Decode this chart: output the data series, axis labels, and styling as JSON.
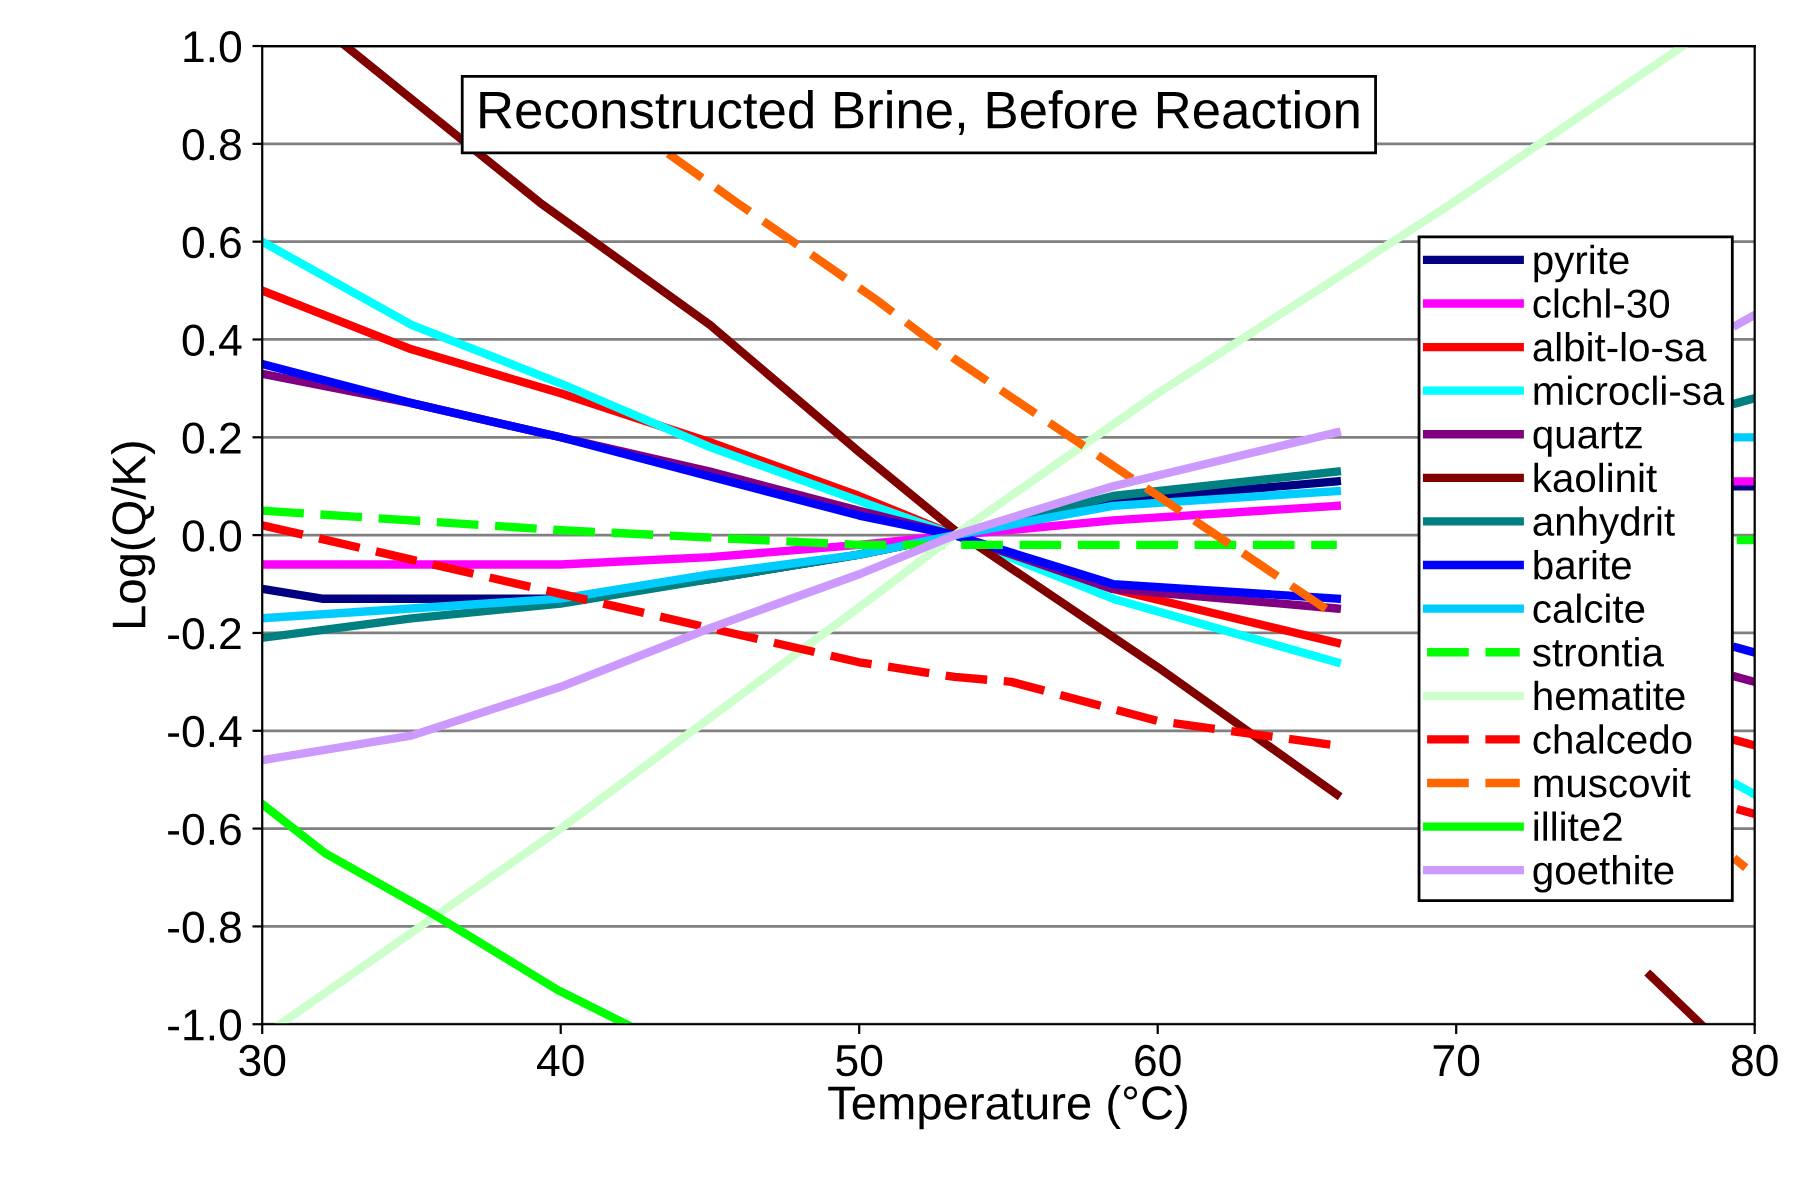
{
  "chart_data": {
    "type": "line",
    "title": "Reconstructed Brine, Before Reaction",
    "xlabel": "Temperature (°C)",
    "ylabel": "Log(Q/K)",
    "xlim": [
      30,
      80
    ],
    "xticks": [
      30,
      40,
      50,
      60,
      70,
      80
    ],
    "ylim": [
      -1,
      1
    ],
    "yticks": [
      {
        "value": -1,
        "label": "-1.0"
      },
      {
        "value": -0.8,
        "label": "-0.8"
      },
      {
        "value": -0.6,
        "label": "-0.6"
      },
      {
        "value": -0.4,
        "label": "-0.4"
      },
      {
        "value": -0.2,
        "label": "-0.2"
      },
      {
        "value": 0,
        "label": "0.0"
      },
      {
        "value": 0.2,
        "label": "0.2"
      },
      {
        "value": 0.4,
        "label": "0.4"
      },
      {
        "value": 0.6,
        "label": "0.6"
      },
      {
        "value": 0.8,
        "label": "0.8"
      },
      {
        "value": 1,
        "label": "1.0"
      }
    ],
    "grid": "y",
    "legend": "right",
    "marker": "none",
    "line_style": "solid",
    "series": [
      {
        "name": "pyrite",
        "color": "#000080",
        "x": [
          30,
          32,
          40,
          45,
          50,
          53.2,
          58.5,
          66,
          72,
          79.4,
          80
        ],
        "values": [
          -0.11,
          -0.13,
          -0.13,
          -0.09,
          -0.04,
          0.0,
          0.07,
          0.11,
          null,
          0.1,
          0.1
        ]
      },
      {
        "name": "clchl-30",
        "color": "#ff00ff",
        "x": [
          30,
          40,
          45,
          50,
          53.2,
          58.5,
          66,
          72,
          79.4,
          80
        ],
        "values": [
          -0.06,
          -0.06,
          -0.045,
          -0.02,
          0.0,
          0.03,
          0.06,
          null,
          0.11,
          0.11
        ]
      },
      {
        "name": "albit-lo-sa",
        "color": "#ff0000",
        "x": [
          30,
          35,
          40,
          45,
          50,
          53.2,
          58.5,
          66,
          72,
          79.4,
          80
        ],
        "values": [
          0.5,
          0.38,
          0.29,
          0.19,
          0.08,
          0.0,
          -0.11,
          -0.22,
          null,
          -0.42,
          -0.43
        ]
      },
      {
        "name": "microcli-sa",
        "color": "#00ffff",
        "x": [
          30,
          35,
          40,
          45,
          50,
          53.2,
          58.5,
          66,
          72,
          79.4,
          80
        ],
        "values": [
          0.6,
          0.43,
          0.31,
          0.18,
          0.07,
          0.0,
          -0.13,
          -0.26,
          null,
          -0.51,
          -0.53
        ]
      },
      {
        "name": "quartz",
        "color": "#800080",
        "x": [
          30,
          35,
          40,
          45,
          50,
          53.2,
          58.5,
          66,
          72,
          79.4,
          80
        ],
        "values": [
          0.33,
          0.27,
          0.2,
          0.13,
          0.05,
          0.0,
          -0.11,
          -0.15,
          null,
          -0.29,
          -0.3
        ]
      },
      {
        "name": "kaolinit",
        "color": "#800000",
        "x": [
          32.8,
          39.3,
          45,
          50,
          53.2,
          60,
          66,
          72,
          76.5,
          78.2
        ],
        "values": [
          1.0,
          0.68,
          0.43,
          0.17,
          0.01,
          -0.27,
          -0.53,
          null,
          -0.9,
          -1.0
        ]
      },
      {
        "name": "anhydrit",
        "color": "#008080",
        "x": [
          30,
          35,
          40,
          45,
          50,
          53.2,
          58.5,
          66,
          72,
          79.4,
          80
        ],
        "values": [
          -0.21,
          -0.17,
          -0.14,
          -0.09,
          -0.04,
          0.0,
          0.08,
          0.13,
          null,
          0.27,
          0.28
        ]
      },
      {
        "name": "barite",
        "color": "#0000ff",
        "x": [
          30,
          35,
          40,
          45,
          50,
          53.2,
          58.5,
          66,
          72,
          79.4,
          80
        ],
        "values": [
          0.35,
          0.27,
          0.2,
          0.12,
          0.04,
          0.0,
          -0.1,
          -0.13,
          null,
          -0.23,
          -0.24
        ]
      },
      {
        "name": "calcite",
        "color": "#00ccff",
        "x": [
          30,
          40,
          45,
          50,
          53.2,
          58.5,
          66,
          72,
          79.4,
          80
        ],
        "values": [
          -0.17,
          -0.13,
          -0.08,
          -0.04,
          0.0,
          0.06,
          0.09,
          null,
          0.2,
          0.2
        ]
      },
      {
        "name": "strontia",
        "color": "#00ff00",
        "line_style": "dashed",
        "x": [
          30,
          40,
          50,
          53.2,
          66,
          72,
          79.4,
          80
        ],
        "values": [
          0.05,
          0.01,
          -0.02,
          -0.02,
          -0.02,
          null,
          -0.01,
          -0.01
        ]
      },
      {
        "name": "hematite",
        "color": "#ccffcc",
        "x": [
          30.6,
          40,
          50.6,
          53.2,
          60,
          66.1,
          69.9,
          77.6
        ],
        "values": [
          -1.0,
          -0.6,
          -0.12,
          0.0,
          0.29,
          0.53,
          0.68,
          1.0
        ]
      },
      {
        "name": "chalcedo",
        "color": "#ff0000",
        "line_style": "dashed",
        "x": [
          30,
          35,
          40,
          45,
          50,
          53.2,
          55.1,
          60,
          66,
          72,
          79.4,
          80
        ],
        "values": [
          0.02,
          -0.05,
          -0.12,
          -0.19,
          -0.26,
          -0.29,
          -0.3,
          -0.38,
          -0.43,
          null,
          -0.56,
          -0.57
        ]
      },
      {
        "name": "muscovit",
        "color": "#ff6600",
        "line_style": "dashed",
        "x": [
          43.6,
          45.9,
          50.6,
          53.2,
          66.1,
          72,
          79.3,
          79.7
        ],
        "values": [
          0.78,
          0.68,
          0.48,
          0.36,
          -0.17,
          null,
          -0.66,
          -0.68
        ]
      },
      {
        "name": "illite2",
        "color": "#00ff00",
        "x": [
          30,
          32.1,
          35.6,
          39.9,
          42.2
        ],
        "values": [
          -0.55,
          -0.65,
          -0.77,
          -0.93,
          -1.0
        ]
      },
      {
        "name": "goethite",
        "color": "#cc99ff",
        "x": [
          30,
          35,
          40,
          45,
          50,
          53.2,
          58.5,
          66,
          72,
          79.4,
          80
        ],
        "values": [
          -0.46,
          -0.41,
          -0.31,
          -0.19,
          -0.08,
          0.0,
          0.1,
          0.21,
          null,
          0.43,
          0.45
        ]
      }
    ]
  }
}
